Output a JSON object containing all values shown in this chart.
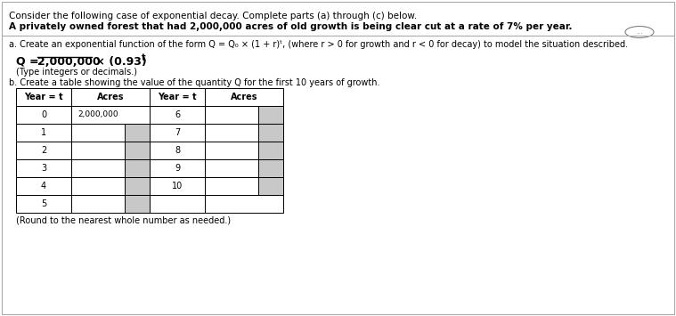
{
  "title_line1": "Consider the following case of exponential decay. Complete parts (a) through (c) below.",
  "title_line2": "A privately owned forest that had 2,000,000 acres of old growth is being clear cut at a rate of 7% per year.",
  "part_a_label": "a. Create an exponential function of the form Q = Q₀ × (1 + r)ᵗ, (where r > 0 for growth and r < 0 for decay) to model the situation described.",
  "formula_prefix": "Q = ",
  "formula_underlined": "2,000,000",
  "formula_suffix": " × (0.93)",
  "formula_superscript": "t",
  "formula_note": "(Type integers or decimals.)",
  "part_b_label": "b. Create a table showing the value of the quantity Q for the first 10 years of growth.",
  "table_note": "(Round to the nearest whole number as needed.)",
  "col_headers": [
    "Year = t",
    "Acres",
    "Year = t",
    "Acres"
  ],
  "years_left": [
    0,
    1,
    2,
    3,
    4,
    5
  ],
  "years_right": [
    6,
    7,
    8,
    9,
    10
  ],
  "year0_value": "2,000,000",
  "bg_color": "#ffffff",
  "table_fill_color": "#c8c8c8",
  "text_color": "#000000",
  "font_size_body": 7.5,
  "font_size_title": 7.5,
  "font_size_formula": 9.0
}
